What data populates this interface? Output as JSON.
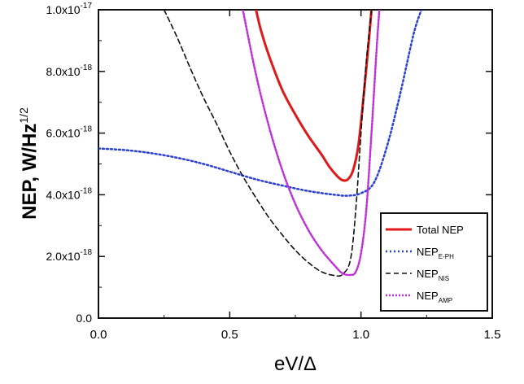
{
  "chart_data": {
    "type": "line",
    "title": "",
    "xlabel": "eV/Δ",
    "ylabel": "NEP, W/Hz",
    "ylabel_sup": "1/2",
    "xlim": [
      0.0,
      1.5
    ],
    "ylim": [
      0.0,
      1e-17
    ],
    "grid": false,
    "legend_position": "bottom-right",
    "x_ticks": [
      {
        "value": 0.0,
        "label": "0.0"
      },
      {
        "value": 0.5,
        "label": "0.5"
      },
      {
        "value": 1.0,
        "label": "1.0"
      },
      {
        "value": 1.5,
        "label": "1.5"
      }
    ],
    "y_ticks": [
      {
        "value": 0.0,
        "mant": "0.0",
        "exp": ""
      },
      {
        "value": 2e-18,
        "mant": "2.0x10",
        "exp": "-18"
      },
      {
        "value": 4e-18,
        "mant": "4.0x10",
        "exp": "-18"
      },
      {
        "value": 6e-18,
        "mant": "6.0x10",
        "exp": "-18"
      },
      {
        "value": 8e-18,
        "mant": "8.0x10",
        "exp": "-18"
      },
      {
        "value": 1e-17,
        "mant": "1.0x10",
        "exp": "-17"
      }
    ],
    "series": [
      {
        "name": "Total NEP",
        "name_sub": "",
        "color": "#e01818",
        "dash": "",
        "width": 3,
        "x": [
          0.6,
          0.62,
          0.65,
          0.7,
          0.75,
          0.8,
          0.85,
          0.88,
          0.91,
          0.93,
          0.95,
          0.97,
          0.99,
          1.01,
          1.03,
          1.04
        ],
        "y": [
          1e-17,
          9.3e-18,
          8.5e-18,
          7.4e-18,
          6.6e-18,
          5.9e-18,
          5.3e-18,
          4.9e-18,
          4.6e-18,
          4.47e-18,
          4.5e-18,
          4.8e-18,
          5.6e-18,
          7.2e-18,
          9e-18,
          1e-17
        ]
      },
      {
        "name": "NEP",
        "name_sub": "E-PH",
        "color": "#2a3fd6",
        "dash": "2,3",
        "width": 2.5,
        "x": [
          0.0,
          0.1,
          0.2,
          0.3,
          0.4,
          0.5,
          0.6,
          0.7,
          0.8,
          0.9,
          0.95,
          1.0,
          1.05,
          1.1,
          1.15,
          1.2,
          1.23
        ],
        "y": [
          5.5e-18,
          5.45e-18,
          5.35e-18,
          5.2e-18,
          5e-18,
          4.75e-18,
          4.5e-18,
          4.3e-18,
          4.12e-18,
          4e-18,
          3.97e-18,
          4.05e-18,
          4.4e-18,
          5.6e-18,
          7.3e-18,
          9.2e-18,
          1e-17
        ]
      },
      {
        "name": "NEP",
        "name_sub": "NIS",
        "color": "#111111",
        "dash": "6,4",
        "width": 1.6,
        "x": [
          0.25,
          0.3,
          0.35,
          0.4,
          0.45,
          0.5,
          0.55,
          0.6,
          0.65,
          0.7,
          0.75,
          0.8,
          0.85,
          0.9,
          0.93,
          0.96,
          0.98,
          1.0,
          1.02,
          1.04
        ],
        "y": [
          1e-17,
          9.1e-18,
          8.1e-18,
          7.15e-18,
          6.3e-18,
          5.4e-18,
          4.6e-18,
          3.9e-18,
          3.25e-18,
          2.7e-18,
          2.2e-18,
          1.8e-18,
          1.5e-18,
          1.38e-18,
          1.42e-18,
          1.9e-18,
          3.5e-18,
          6e-18,
          8.3e-18,
          1e-17
        ]
      },
      {
        "name": "NEP",
        "name_sub": "AMP",
        "color": "#c030d8",
        "dash": "2,2",
        "width": 2.5,
        "x": [
          0.55,
          0.6,
          0.65,
          0.7,
          0.75,
          0.8,
          0.85,
          0.9,
          0.93,
          0.96,
          0.98,
          1.0,
          1.02,
          1.04,
          1.06,
          1.07
        ],
        "y": [
          1e-17,
          7.9e-18,
          6.2e-18,
          4.8e-18,
          3.7e-18,
          2.85e-18,
          2.2e-18,
          1.7e-18,
          1.45e-18,
          1.4e-18,
          1.5e-18,
          2.1e-18,
          3.5e-18,
          6e-18,
          8.8e-18,
          1e-17
        ]
      }
    ]
  }
}
